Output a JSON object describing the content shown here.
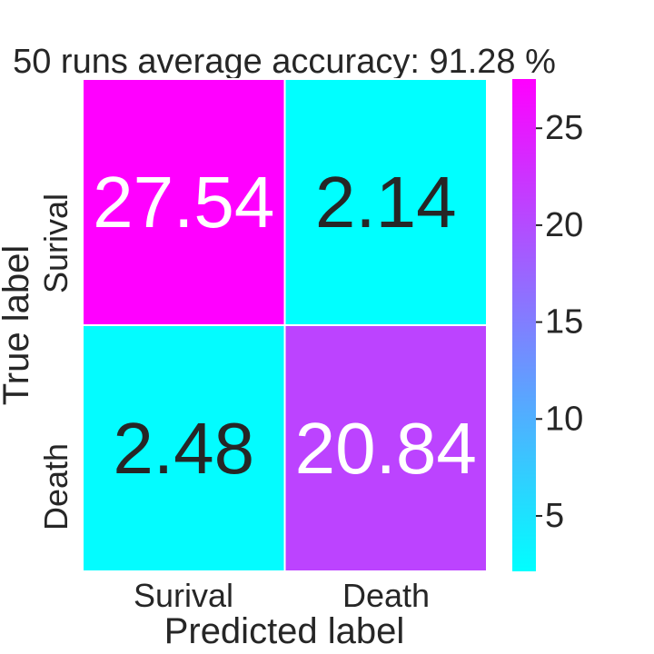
{
  "chart_data": {
    "type": "heatmap",
    "title": "50 runs average accuracy: 91.28 %",
    "xlabel": "Predicted label",
    "ylabel": "True label",
    "x_categories": [
      "Surival",
      "Death"
    ],
    "y_categories": [
      "Surival",
      "Death"
    ],
    "values": [
      [
        27.54,
        2.14
      ],
      [
        2.48,
        20.84
      ]
    ],
    "value_labels": [
      [
        "27.54",
        "2.14"
      ],
      [
        "2.48",
        "20.84"
      ]
    ],
    "colorbar": {
      "ticks": [
        5,
        10,
        15,
        20,
        25
      ],
      "tick_labels": [
        "5",
        "10",
        "15",
        "20",
        "25"
      ],
      "min": 2.14,
      "max": 27.54
    },
    "colormap": "cool",
    "colors": {
      "low": "#00ffff",
      "high": "#ff00ff",
      "text_dark": "#262626",
      "text_light": "#ffffff",
      "grid": "#ffffff"
    }
  }
}
